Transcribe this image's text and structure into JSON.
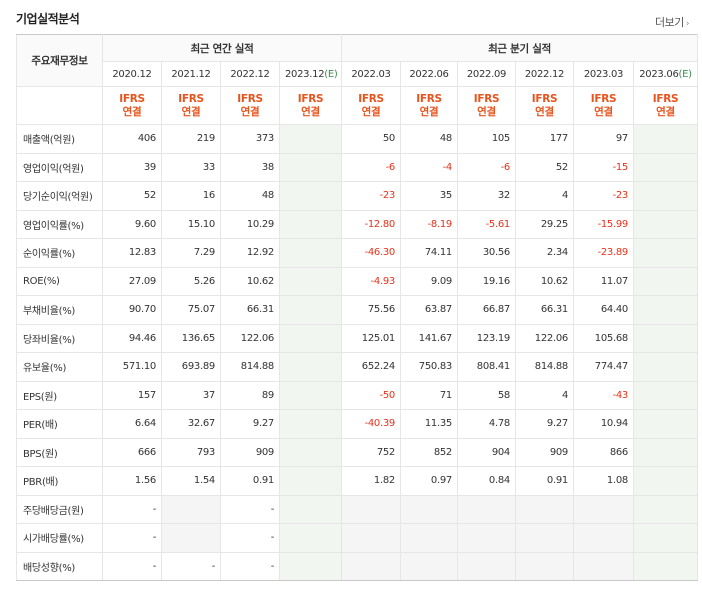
{
  "header": {
    "title": "기업실적분석",
    "more_label": "더보기",
    "more_arrow": "›"
  },
  "table": {
    "corner_label": "주요재무정보",
    "group_annual": "최근 연간 실적",
    "group_quarter": "최근 분기 실적",
    "periods": [
      {
        "label": "2020.12",
        "e": "",
        "projected": false
      },
      {
        "label": "2021.12",
        "e": "",
        "projected": false
      },
      {
        "label": "2022.12",
        "e": "",
        "projected": false
      },
      {
        "label": "2023.12",
        "e": "(E)",
        "projected": true
      },
      {
        "label": "2022.03",
        "e": "",
        "projected": false
      },
      {
        "label": "2022.06",
        "e": "",
        "projected": false
      },
      {
        "label": "2022.09",
        "e": "",
        "projected": false
      },
      {
        "label": "2022.12",
        "e": "",
        "projected": false
      },
      {
        "label": "2023.03",
        "e": "",
        "projected": false
      },
      {
        "label": "2023.06",
        "e": "(E)",
        "projected": true
      }
    ],
    "basis_line1": "IFRS",
    "basis_line2": "연결",
    "rows": [
      {
        "label": "매출액(억원)",
        "group_start": true,
        "values": [
          "406",
          "219",
          "373",
          "",
          "50",
          "48",
          "105",
          "177",
          "97",
          ""
        ]
      },
      {
        "label": "영업이익(억원)",
        "group_start": false,
        "values": [
          "39",
          "33",
          "38",
          "",
          "-6",
          "-4",
          "-6",
          "52",
          "-15",
          ""
        ]
      },
      {
        "label": "당기순이익(억원)",
        "group_start": false,
        "values": [
          "52",
          "16",
          "48",
          "",
          "-23",
          "35",
          "32",
          "4",
          "-23",
          ""
        ]
      },
      {
        "label": "영업이익률(%)",
        "group_start": true,
        "values": [
          "9.60",
          "15.10",
          "10.29",
          "",
          "-12.80",
          "-8.19",
          "-5.61",
          "29.25",
          "-15.99",
          ""
        ]
      },
      {
        "label": "순이익률(%)",
        "group_start": false,
        "values": [
          "12.83",
          "7.29",
          "12.92",
          "",
          "-46.30",
          "74.11",
          "30.56",
          "2.34",
          "-23.89",
          ""
        ]
      },
      {
        "label": "ROE(%)",
        "group_start": false,
        "values": [
          "27.09",
          "5.26",
          "10.62",
          "",
          "-4.93",
          "9.09",
          "19.16",
          "10.62",
          "11.07",
          ""
        ]
      },
      {
        "label": "부채비율(%)",
        "group_start": true,
        "values": [
          "90.70",
          "75.07",
          "66.31",
          "",
          "75.56",
          "63.87",
          "66.87",
          "66.31",
          "64.40",
          ""
        ]
      },
      {
        "label": "당좌비율(%)",
        "group_start": false,
        "values": [
          "94.46",
          "136.65",
          "122.06",
          "",
          "125.01",
          "141.67",
          "123.19",
          "122.06",
          "105.68",
          ""
        ]
      },
      {
        "label": "유보율(%)",
        "group_start": false,
        "values": [
          "571.10",
          "693.89",
          "814.88",
          "",
          "652.24",
          "750.83",
          "808.41",
          "814.88",
          "774.47",
          ""
        ]
      },
      {
        "label": "EPS(원)",
        "group_start": true,
        "values": [
          "157",
          "37",
          "89",
          "",
          "-50",
          "71",
          "58",
          "4",
          "-43",
          ""
        ]
      },
      {
        "label": "PER(배)",
        "group_start": false,
        "values": [
          "6.64",
          "32.67",
          "9.27",
          "",
          "-40.39",
          "11.35",
          "4.78",
          "9.27",
          "10.94",
          ""
        ]
      },
      {
        "label": "BPS(원)",
        "group_start": false,
        "values": [
          "666",
          "793",
          "909",
          "",
          "752",
          "852",
          "904",
          "909",
          "866",
          ""
        ]
      },
      {
        "label": "PBR(배)",
        "group_start": false,
        "values": [
          "1.56",
          "1.54",
          "0.91",
          "",
          "1.82",
          "0.97",
          "0.84",
          "0.91",
          "1.08",
          ""
        ]
      },
      {
        "label": "주당배당금(원)",
        "group_start": true,
        "values": [
          "-",
          "",
          "-",
          "",
          "",
          "",
          "",
          "",
          "",
          ""
        ],
        "blank_cols": [
          1,
          4,
          5,
          6,
          7,
          8
        ]
      },
      {
        "label": "시가배당률(%)",
        "group_start": false,
        "values": [
          "-",
          "",
          "-",
          "",
          "",
          "",
          "",
          "",
          "",
          ""
        ],
        "blank_cols": [
          1,
          4,
          5,
          6,
          7,
          8
        ]
      },
      {
        "label": "배당성향(%)",
        "group_start": false,
        "values": [
          "-",
          "-",
          "-",
          "",
          "",
          "",
          "",
          "",
          "",
          ""
        ],
        "blank_cols": [
          4,
          5,
          6,
          7,
          8
        ]
      }
    ]
  }
}
